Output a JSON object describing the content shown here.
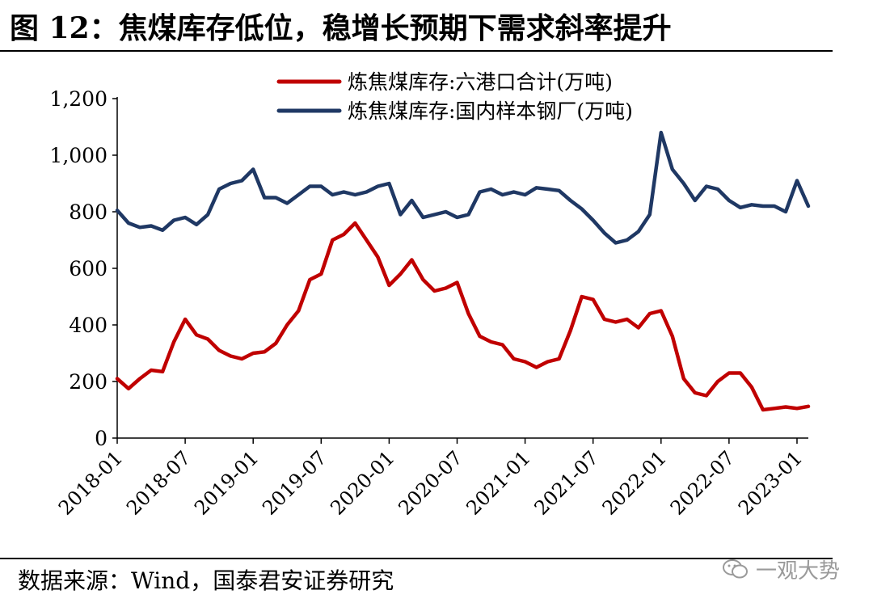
{
  "title": "图 12：焦煤库存低位，稳增长预期下需求斜率提升",
  "source": "数据来源：Wind，国泰君安证券研究",
  "watermark": "一观大势",
  "chart_data": {
    "type": "line",
    "y_ticks": [
      "0",
      "200",
      "400",
      "600",
      "800",
      "1,000",
      "1,200"
    ],
    "ylim": [
      0,
      1200
    ],
    "x_ticks": [
      "2018-01",
      "2018-07",
      "2019-01",
      "2019-07",
      "2020-01",
      "2020-07",
      "2021-01",
      "2021-07",
      "2022-01",
      "2022-07",
      "2023-01"
    ],
    "xlim": [
      "2018-01",
      "2023-02"
    ],
    "legend_position": "top",
    "series": [
      {
        "name": "炼焦煤库存:六港口合计(万吨)",
        "color": "#c00000",
        "points": [
          [
            "2018-01",
            210
          ],
          [
            "2018-02",
            175
          ],
          [
            "2018-03",
            210
          ],
          [
            "2018-04",
            240
          ],
          [
            "2018-05",
            235
          ],
          [
            "2018-06",
            340
          ],
          [
            "2018-07",
            420
          ],
          [
            "2018-08",
            365
          ],
          [
            "2018-09",
            350
          ],
          [
            "2018-10",
            310
          ],
          [
            "2018-11",
            290
          ],
          [
            "2018-12",
            280
          ],
          [
            "2019-01",
            300
          ],
          [
            "2019-02",
            305
          ],
          [
            "2019-03",
            335
          ],
          [
            "2019-04",
            400
          ],
          [
            "2019-05",
            450
          ],
          [
            "2019-06",
            560
          ],
          [
            "2019-07",
            580
          ],
          [
            "2019-08",
            700
          ],
          [
            "2019-09",
            720
          ],
          [
            "2019-10",
            760
          ],
          [
            "2019-11",
            700
          ],
          [
            "2019-12",
            640
          ],
          [
            "2020-01",
            540
          ],
          [
            "2020-02",
            580
          ],
          [
            "2020-03",
            630
          ],
          [
            "2020-04",
            560
          ],
          [
            "2020-05",
            520
          ],
          [
            "2020-06",
            530
          ],
          [
            "2020-07",
            550
          ],
          [
            "2020-08",
            440
          ],
          [
            "2020-09",
            360
          ],
          [
            "2020-10",
            340
          ],
          [
            "2020-11",
            330
          ],
          [
            "2020-12",
            280
          ],
          [
            "2021-01",
            270
          ],
          [
            "2021-02",
            250
          ],
          [
            "2021-03",
            270
          ],
          [
            "2021-04",
            280
          ],
          [
            "2021-05",
            380
          ],
          [
            "2021-06",
            500
          ],
          [
            "2021-07",
            490
          ],
          [
            "2021-08",
            420
          ],
          [
            "2021-09",
            410
          ],
          [
            "2021-10",
            420
          ],
          [
            "2021-11",
            390
          ],
          [
            "2021-12",
            440
          ],
          [
            "2022-01",
            450
          ],
          [
            "2022-02",
            360
          ],
          [
            "2022-03",
            210
          ],
          [
            "2022-04",
            160
          ],
          [
            "2022-05",
            150
          ],
          [
            "2022-06",
            200
          ],
          [
            "2022-07",
            230
          ],
          [
            "2022-08",
            230
          ],
          [
            "2022-09",
            180
          ],
          [
            "2022-10",
            100
          ],
          [
            "2022-11",
            105
          ],
          [
            "2022-12",
            110
          ],
          [
            "2023-01",
            105
          ],
          [
            "2023-02",
            112
          ]
        ]
      },
      {
        "name": "炼焦煤库存:国内样本钢厂(万吨)",
        "color": "#1f3864",
        "points": [
          [
            "2018-01",
            805
          ],
          [
            "2018-02",
            760
          ],
          [
            "2018-03",
            745
          ],
          [
            "2018-04",
            750
          ],
          [
            "2018-05",
            735
          ],
          [
            "2018-06",
            770
          ],
          [
            "2018-07",
            780
          ],
          [
            "2018-08",
            755
          ],
          [
            "2018-09",
            790
          ],
          [
            "2018-10",
            880
          ],
          [
            "2018-11",
            900
          ],
          [
            "2018-12",
            910
          ],
          [
            "2019-01",
            950
          ],
          [
            "2019-02",
            850
          ],
          [
            "2019-03",
            850
          ],
          [
            "2019-04",
            830
          ],
          [
            "2019-05",
            860
          ],
          [
            "2019-06",
            890
          ],
          [
            "2019-07",
            890
          ],
          [
            "2019-08",
            860
          ],
          [
            "2019-09",
            870
          ],
          [
            "2019-10",
            860
          ],
          [
            "2019-11",
            870
          ],
          [
            "2019-12",
            890
          ],
          [
            "2020-01",
            900
          ],
          [
            "2020-02",
            790
          ],
          [
            "2020-03",
            840
          ],
          [
            "2020-04",
            780
          ],
          [
            "2020-05",
            790
          ],
          [
            "2020-06",
            800
          ],
          [
            "2020-07",
            780
          ],
          [
            "2020-08",
            790
          ],
          [
            "2020-09",
            870
          ],
          [
            "2020-10",
            880
          ],
          [
            "2020-11",
            860
          ],
          [
            "2020-12",
            870
          ],
          [
            "2021-01",
            860
          ],
          [
            "2021-02",
            885
          ],
          [
            "2021-03",
            880
          ],
          [
            "2021-04",
            875
          ],
          [
            "2021-05",
            840
          ],
          [
            "2021-06",
            810
          ],
          [
            "2021-07",
            770
          ],
          [
            "2021-08",
            725
          ],
          [
            "2021-09",
            690
          ],
          [
            "2021-10",
            700
          ],
          [
            "2021-11",
            730
          ],
          [
            "2021-12",
            790
          ],
          [
            "2022-01",
            1080
          ],
          [
            "2022-02",
            950
          ],
          [
            "2022-03",
            900
          ],
          [
            "2022-04",
            840
          ],
          [
            "2022-05",
            890
          ],
          [
            "2022-06",
            880
          ],
          [
            "2022-07",
            840
          ],
          [
            "2022-08",
            815
          ],
          [
            "2022-09",
            825
          ],
          [
            "2022-10",
            820
          ],
          [
            "2022-11",
            820
          ],
          [
            "2022-12",
            800
          ],
          [
            "2023-01",
            910
          ],
          [
            "2023-02",
            820
          ]
        ]
      }
    ]
  }
}
